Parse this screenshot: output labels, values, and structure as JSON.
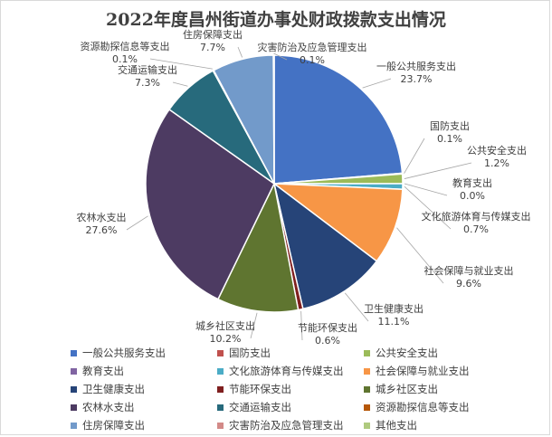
{
  "chart_data": {
    "type": "pie",
    "title": "2022年度昌州街道办事处财政拨款支出情况",
    "slices": [
      {
        "label": "一般公共服务支出",
        "value": 23.7,
        "value_label": "23.7%",
        "color": "#4472c4"
      },
      {
        "label": "国防支出",
        "value": 0.1,
        "value_label": "0.1%",
        "color": "#c0504d"
      },
      {
        "label": "公共安全支出",
        "value": 1.2,
        "value_label": "1.2%",
        "color": "#9bbb59"
      },
      {
        "label": "教育支出",
        "value": 0.0,
        "value_label": "0.0%",
        "color": "#8064a2"
      },
      {
        "label": "文化旅游体育与传媒支出",
        "value": 0.7,
        "value_label": "0.7%",
        "color": "#4bacc6"
      },
      {
        "label": "社会保障与就业支出",
        "value": 9.6,
        "value_label": "9.6%",
        "color": "#f79646"
      },
      {
        "label": "卫生健康支出",
        "value": 11.1,
        "value_label": "11.1%",
        "color": "#264478"
      },
      {
        "label": "节能环保支出",
        "value": 0.6,
        "value_label": "0.6%",
        "color": "#7f1f1f"
      },
      {
        "label": "城乡社区支出",
        "value": 10.2,
        "value_label": "10.2%",
        "color": "#5f7530"
      },
      {
        "label": "农林水支出",
        "value": 27.6,
        "value_label": "27.6%",
        "color": "#4d3b62"
      },
      {
        "label": "交通运输支出",
        "value": 7.3,
        "value_label": "7.3%",
        "color": "#276a7c"
      },
      {
        "label": "资源勘探信息等支出",
        "value": 0.1,
        "value_label": "0.1%",
        "color": "#b65708"
      },
      {
        "label": "住房保障支出",
        "value": 7.7,
        "value_label": "7.7%",
        "color": "#729aca"
      },
      {
        "label": "灾害防治及应急管理支出",
        "value": 0.1,
        "value_label": "0.1%",
        "color": "#d38a88"
      }
    ],
    "legend": [
      {
        "label": "一般公共服务支出",
        "color": "#4472c4"
      },
      {
        "label": "国防支出",
        "color": "#c0504d"
      },
      {
        "label": "公共安全支出",
        "color": "#9bbb59"
      },
      {
        "label": "教育支出",
        "color": "#8064a2"
      },
      {
        "label": "文化旅游体育与传媒支出",
        "color": "#4bacc6"
      },
      {
        "label": "社会保障与就业支出",
        "color": "#f79646"
      },
      {
        "label": "卫生健康支出",
        "color": "#264478"
      },
      {
        "label": "节能环保支出",
        "color": "#7f1f1f"
      },
      {
        "label": "城乡社区支出",
        "color": "#5f7530"
      },
      {
        "label": "农林水支出",
        "color": "#4d3b62"
      },
      {
        "label": "交通运输支出",
        "color": "#276a7c"
      },
      {
        "label": "资源勘探信息等支出",
        "color": "#b65708"
      },
      {
        "label": "住房保障支出",
        "color": "#729aca"
      },
      {
        "label": "灾害防治及应急管理支出",
        "color": "#d38a88"
      },
      {
        "label": "其他支出",
        "color": "#afca7f"
      }
    ],
    "legend_position": "bottom"
  }
}
